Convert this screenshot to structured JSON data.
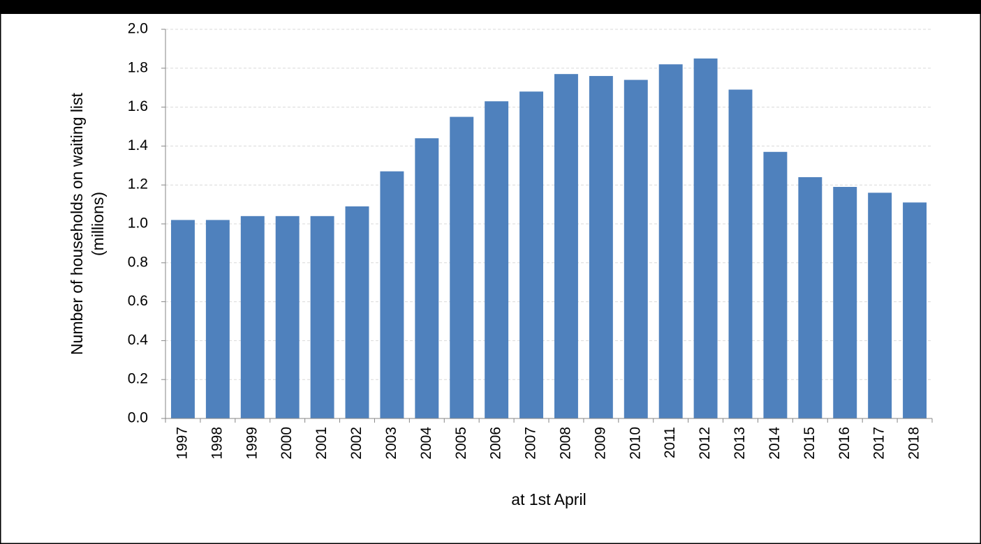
{
  "chart_data": {
    "type": "bar",
    "ylabel": [
      "Number of households on waiting list",
      "(millions)"
    ],
    "xlabel": "at 1st April",
    "categories": [
      "1997",
      "1998",
      "1999",
      "2000",
      "2001",
      "2002",
      "2003",
      "2004",
      "2005",
      "2006",
      "2007",
      "2008",
      "2009",
      "2010",
      "2011",
      "2012",
      "2013",
      "2014",
      "2015",
      "2016",
      "2017",
      "2018"
    ],
    "values": [
      1.02,
      1.02,
      1.04,
      1.04,
      1.04,
      1.09,
      1.27,
      1.44,
      1.55,
      1.63,
      1.68,
      1.77,
      1.76,
      1.74,
      1.82,
      1.85,
      1.69,
      1.37,
      1.24,
      1.19,
      1.16,
      1.11
    ],
    "color": "#4f81bd",
    "ylim": [
      0,
      2
    ],
    "yticks": [
      {
        "value": 0,
        "label": "0.0"
      },
      0.2,
      0.4,
      0.6,
      0.8,
      {
        "value": 1,
        "label": "1.0"
      },
      1.2,
      1.4,
      1.6,
      1.8,
      {
        "value": 2,
        "label": "2.0"
      }
    ],
    "grid": true
  }
}
